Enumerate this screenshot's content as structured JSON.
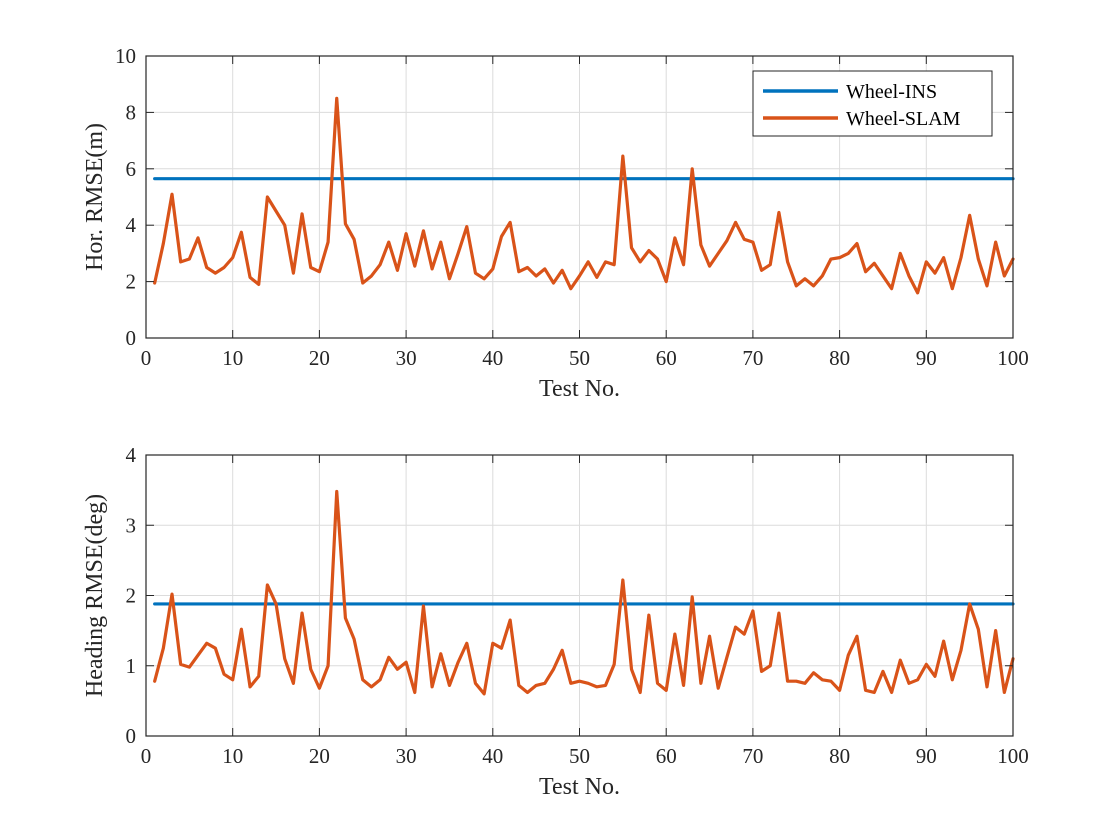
{
  "chart_data": [
    {
      "type": "line",
      "xlabel": "Test No.",
      "ylabel": "Hor. RMSE(m)",
      "xlim": [
        0,
        100
      ],
      "ylim": [
        0,
        10
      ],
      "xticks": [
        0,
        10,
        20,
        30,
        40,
        50,
        60,
        70,
        80,
        90,
        100
      ],
      "yticks": [
        0,
        2,
        4,
        6,
        8,
        10
      ],
      "grid": true,
      "legend": "top-right",
      "x": [
        1,
        2,
        3,
        4,
        5,
        6,
        7,
        8,
        9,
        10,
        11,
        12,
        13,
        14,
        15,
        16,
        17,
        18,
        19,
        20,
        21,
        22,
        23,
        24,
        25,
        26,
        27,
        28,
        29,
        30,
        31,
        32,
        33,
        34,
        35,
        36,
        37,
        38,
        39,
        40,
        41,
        42,
        43,
        44,
        45,
        46,
        47,
        48,
        49,
        50,
        51,
        52,
        53,
        54,
        55,
        56,
        57,
        58,
        59,
        60,
        61,
        62,
        63,
        64,
        65,
        66,
        67,
        68,
        69,
        70,
        71,
        72,
        73,
        74,
        75,
        76,
        77,
        78,
        79,
        80,
        81,
        82,
        83,
        84,
        85,
        86,
        87,
        88,
        89,
        90,
        91,
        92,
        93,
        94,
        95,
        96,
        97,
        98,
        99,
        100
      ],
      "series": [
        {
          "name": "Wheel-INS",
          "color": "#0072BD",
          "values": [
            5.65,
            5.65,
            5.65,
            5.65,
            5.65,
            5.65,
            5.65,
            5.65,
            5.65,
            5.65,
            5.65,
            5.65,
            5.65,
            5.65,
            5.65,
            5.65,
            5.65,
            5.65,
            5.65,
            5.65,
            5.65,
            5.65,
            5.65,
            5.65,
            5.65,
            5.65,
            5.65,
            5.65,
            5.65,
            5.65,
            5.65,
            5.65,
            5.65,
            5.65,
            5.65,
            5.65,
            5.65,
            5.65,
            5.65,
            5.65,
            5.65,
            5.65,
            5.65,
            5.65,
            5.65,
            5.65,
            5.65,
            5.65,
            5.65,
            5.65,
            5.65,
            5.65,
            5.65,
            5.65,
            5.65,
            5.65,
            5.65,
            5.65,
            5.65,
            5.65,
            5.65,
            5.65,
            5.65,
            5.65,
            5.65,
            5.65,
            5.65,
            5.65,
            5.65,
            5.65,
            5.65,
            5.65,
            5.65,
            5.65,
            5.65,
            5.65,
            5.65,
            5.65,
            5.65,
            5.65,
            5.65,
            5.65,
            5.65,
            5.65,
            5.65,
            5.65,
            5.65,
            5.65,
            5.65,
            5.65,
            5.65,
            5.65,
            5.65,
            5.65,
            5.65,
            5.65,
            5.65,
            5.65,
            5.65,
            5.65
          ]
        },
        {
          "name": "Wheel-SLAM",
          "color": "#D95319",
          "values": [
            1.95,
            3.35,
            5.1,
            2.7,
            2.8,
            3.55,
            2.5,
            2.3,
            2.5,
            2.85,
            3.75,
            2.15,
            1.9,
            5.0,
            4.5,
            4.0,
            2.3,
            4.4,
            2.5,
            2.35,
            3.4,
            8.5,
            4.05,
            3.5,
            1.95,
            2.2,
            2.6,
            3.4,
            2.4,
            3.7,
            2.55,
            3.8,
            2.45,
            3.4,
            2.1,
            3.0,
            3.95,
            2.3,
            2.1,
            2.45,
            3.6,
            4.1,
            2.35,
            2.5,
            2.2,
            2.45,
            1.95,
            2.4,
            1.75,
            2.2,
            2.7,
            2.15,
            2.7,
            2.6,
            6.45,
            3.2,
            2.7,
            3.1,
            2.8,
            2.0,
            3.55,
            2.6,
            6.0,
            3.3,
            2.55,
            3.0,
            3.45,
            4.1,
            3.5,
            3.4,
            2.4,
            2.6,
            4.45,
            2.7,
            1.85,
            2.1,
            1.85,
            2.2,
            2.8,
            2.85,
            3.0,
            3.35,
            2.35,
            2.65,
            2.2,
            1.75,
            3.0,
            2.2,
            1.6,
            2.7,
            2.3,
            2.85,
            1.75,
            2.85,
            4.35,
            2.8,
            1.85,
            3.4,
            2.2,
            2.8
          ]
        }
      ]
    },
    {
      "type": "line",
      "xlabel": "Test No.",
      "ylabel": "Heading RMSE(deg)",
      "xlim": [
        0,
        100
      ],
      "ylim": [
        0,
        4
      ],
      "xticks": [
        0,
        10,
        20,
        30,
        40,
        50,
        60,
        70,
        80,
        90,
        100
      ],
      "yticks": [
        0,
        1,
        2,
        3,
        4
      ],
      "grid": true,
      "x": [
        1,
        2,
        3,
        4,
        5,
        6,
        7,
        8,
        9,
        10,
        11,
        12,
        13,
        14,
        15,
        16,
        17,
        18,
        19,
        20,
        21,
        22,
        23,
        24,
        25,
        26,
        27,
        28,
        29,
        30,
        31,
        32,
        33,
        34,
        35,
        36,
        37,
        38,
        39,
        40,
        41,
        42,
        43,
        44,
        45,
        46,
        47,
        48,
        49,
        50,
        51,
        52,
        53,
        54,
        55,
        56,
        57,
        58,
        59,
        60,
        61,
        62,
        63,
        64,
        65,
        66,
        67,
        68,
        69,
        70,
        71,
        72,
        73,
        74,
        75,
        76,
        77,
        78,
        79,
        80,
        81,
        82,
        83,
        84,
        85,
        86,
        87,
        88,
        89,
        90,
        91,
        92,
        93,
        94,
        95,
        96,
        97,
        98,
        99,
        100
      ],
      "series": [
        {
          "color": "#0072BD",
          "values": [
            1.88,
            1.88,
            1.88,
            1.88,
            1.88,
            1.88,
            1.88,
            1.88,
            1.88,
            1.88,
            1.88,
            1.88,
            1.88,
            1.88,
            1.88,
            1.88,
            1.88,
            1.88,
            1.88,
            1.88,
            1.88,
            1.88,
            1.88,
            1.88,
            1.88,
            1.88,
            1.88,
            1.88,
            1.88,
            1.88,
            1.88,
            1.88,
            1.88,
            1.88,
            1.88,
            1.88,
            1.88,
            1.88,
            1.88,
            1.88,
            1.88,
            1.88,
            1.88,
            1.88,
            1.88,
            1.88,
            1.88,
            1.88,
            1.88,
            1.88,
            1.88,
            1.88,
            1.88,
            1.88,
            1.88,
            1.88,
            1.88,
            1.88,
            1.88,
            1.88,
            1.88,
            1.88,
            1.88,
            1.88,
            1.88,
            1.88,
            1.88,
            1.88,
            1.88,
            1.88,
            1.88,
            1.88,
            1.88,
            1.88,
            1.88,
            1.88,
            1.88,
            1.88,
            1.88,
            1.88,
            1.88,
            1.88,
            1.88,
            1.88,
            1.88,
            1.88,
            1.88,
            1.88,
            1.88,
            1.88,
            1.88,
            1.88,
            1.88,
            1.88,
            1.88,
            1.88,
            1.88,
            1.88,
            1.88,
            1.88
          ]
        },
        {
          "color": "#D95319",
          "values": [
            0.78,
            1.25,
            2.02,
            1.02,
            0.98,
            1.15,
            1.32,
            1.25,
            0.88,
            0.8,
            1.52,
            0.7,
            0.85,
            2.15,
            1.88,
            1.1,
            0.75,
            1.75,
            0.95,
            0.68,
            1.0,
            3.48,
            1.68,
            1.38,
            0.8,
            0.7,
            0.8,
            1.12,
            0.95,
            1.05,
            0.62,
            1.85,
            0.7,
            1.17,
            0.72,
            1.05,
            1.32,
            0.75,
            0.6,
            1.32,
            1.25,
            1.65,
            0.72,
            0.62,
            0.72,
            0.75,
            0.95,
            1.22,
            0.75,
            0.78,
            0.75,
            0.7,
            0.72,
            1.02,
            2.22,
            0.95,
            0.62,
            1.72,
            0.75,
            0.65,
            1.45,
            0.72,
            1.98,
            0.75,
            1.42,
            0.68,
            1.12,
            1.55,
            1.45,
            1.78,
            0.92,
            1.0,
            1.75,
            0.78,
            0.78,
            0.75,
            0.9,
            0.8,
            0.78,
            0.65,
            1.15,
            1.42,
            0.65,
            0.62,
            0.92,
            0.62,
            1.08,
            0.75,
            0.8,
            1.02,
            0.85,
            1.35,
            0.8,
            1.22,
            1.88,
            1.52,
            0.7,
            1.5,
            0.62,
            1.1
          ]
        }
      ]
    }
  ]
}
